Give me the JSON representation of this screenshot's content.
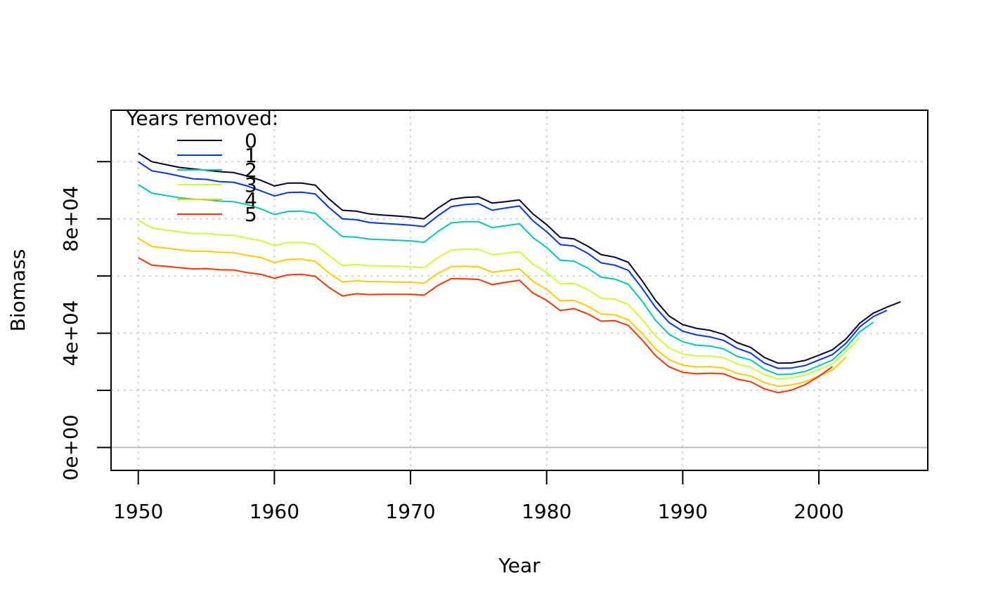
{
  "chart_data": {
    "type": "line",
    "title": "",
    "xlabel": "Year",
    "ylabel": "Biomass",
    "xlim": [
      1948,
      2008
    ],
    "ylim": [
      -8000,
      118000
    ],
    "x_ticks": [
      1950,
      1960,
      1970,
      1980,
      1990,
      2000
    ],
    "x_tick_labels": [
      "1950",
      "1960",
      "1970",
      "1980",
      "1990",
      "2000"
    ],
    "y_ticks": [
      0,
      20000,
      40000,
      60000,
      80000,
      100000
    ],
    "y_tick_labels": [
      "0e+00",
      "",
      "4e+04",
      "",
      "8e+04",
      ""
    ],
    "grid": true,
    "zero_line": true,
    "legend": {
      "title": "Years removed:",
      "position": "top-left"
    },
    "series": [
      {
        "name": "0",
        "color": "#000033",
        "start": 1950,
        "values": [
          103000,
          100000,
          99000,
          98000,
          97500,
          97000,
          96500,
          96200,
          95000,
          93500,
          91500,
          92500,
          92500,
          91800,
          87000,
          83000,
          82700,
          81700,
          81300,
          81000,
          80600,
          80000,
          83700,
          86800,
          87500,
          87700,
          85500,
          86000,
          86600,
          81700,
          78000,
          73500,
          73000,
          70500,
          67500,
          66600,
          64800,
          58500,
          51500,
          46000,
          43000,
          41700,
          41000,
          39600,
          36700,
          35000,
          31500,
          29500,
          29600,
          30500,
          32300,
          34200,
          38000,
          43500,
          47000,
          49100,
          51000
        ]
      },
      {
        "name": "1",
        "color": "#0033FF",
        "start": 1950,
        "values": [
          100000,
          96800,
          96000,
          95000,
          94000,
          93800,
          93000,
          92800,
          91500,
          89800,
          88000,
          89200,
          89300,
          88700,
          84000,
          80000,
          79700,
          78700,
          78400,
          78100,
          77800,
          77300,
          81000,
          84300,
          85000,
          85300,
          83000,
          83800,
          84500,
          79300,
          75500,
          71000,
          70500,
          68000,
          64600,
          63800,
          62000,
          55800,
          49000,
          43700,
          40700,
          39400,
          38700,
          37500,
          34700,
          33000,
          29500,
          27700,
          27800,
          28700,
          30600,
          32500,
          36500,
          42200,
          45800,
          48000
        ]
      },
      {
        "name": "2",
        "color": "#00CCAA",
        "start": 1950,
        "values": [
          92000,
          89000,
          88200,
          87400,
          86900,
          86700,
          86200,
          86000,
          85000,
          83500,
          81500,
          82600,
          82700,
          81900,
          77600,
          73800,
          73600,
          72900,
          72700,
          72500,
          72300,
          71800,
          75500,
          78600,
          79000,
          79000,
          76900,
          77600,
          78300,
          73400,
          70000,
          65500,
          65200,
          62800,
          59600,
          58900,
          57100,
          51300,
          44500,
          39600,
          37000,
          35800,
          35500,
          34500,
          31900,
          30600,
          27400,
          25500,
          25700,
          26600,
          28600,
          30600,
          35000,
          40500,
          43800
        ]
      },
      {
        "name": "3",
        "color": "#CCFF33",
        "start": 1950,
        "values": [
          79500,
          76800,
          76100,
          75400,
          74900,
          74900,
          74400,
          74200,
          73200,
          72400,
          70600,
          71700,
          71800,
          71000,
          67100,
          63700,
          64000,
          63600,
          63500,
          63400,
          63200,
          62900,
          66400,
          69100,
          69400,
          69300,
          67400,
          68000,
          68500,
          64100,
          61300,
          57200,
          57400,
          55300,
          52200,
          51900,
          50000,
          44900,
          39000,
          34800,
          32700,
          32000,
          32000,
          31400,
          29200,
          28100,
          25400,
          24000,
          24400,
          25300,
          27300,
          29200,
          33600,
          38500
        ]
      },
      {
        "name": "4",
        "color": "#FFCC00",
        "start": 1950,
        "values": [
          73200,
          70300,
          69800,
          69200,
          68700,
          68700,
          68300,
          68200,
          67200,
          66500,
          64700,
          65800,
          65900,
          65100,
          61100,
          57900,
          58400,
          58000,
          58000,
          57900,
          57800,
          57500,
          60900,
          63300,
          63400,
          63200,
          61300,
          61900,
          62500,
          58100,
          55300,
          51300,
          51500,
          49500,
          46700,
          46400,
          44700,
          39900,
          34500,
          30700,
          28800,
          28200,
          28300,
          27800,
          25900,
          25000,
          22700,
          21400,
          21900,
          23000,
          25000,
          27100,
          31700
        ]
      },
      {
        "name": "5",
        "color": "#FF3300",
        "start": 1950,
        "values": [
          66400,
          63800,
          63400,
          62900,
          62500,
          62600,
          62200,
          62100,
          61200,
          60600,
          59200,
          60400,
          60600,
          59900,
          56000,
          53000,
          53800,
          53500,
          53600,
          53600,
          53600,
          53300,
          56700,
          59100,
          59000,
          58800,
          57000,
          57800,
          58500,
          54000,
          51500,
          47900,
          48600,
          46800,
          44200,
          44400,
          42700,
          37700,
          32100,
          28200,
          26300,
          25800,
          26000,
          25800,
          23900,
          23000,
          20500,
          19200,
          20100,
          22000,
          24900,
          28300
        ]
      }
    ]
  }
}
